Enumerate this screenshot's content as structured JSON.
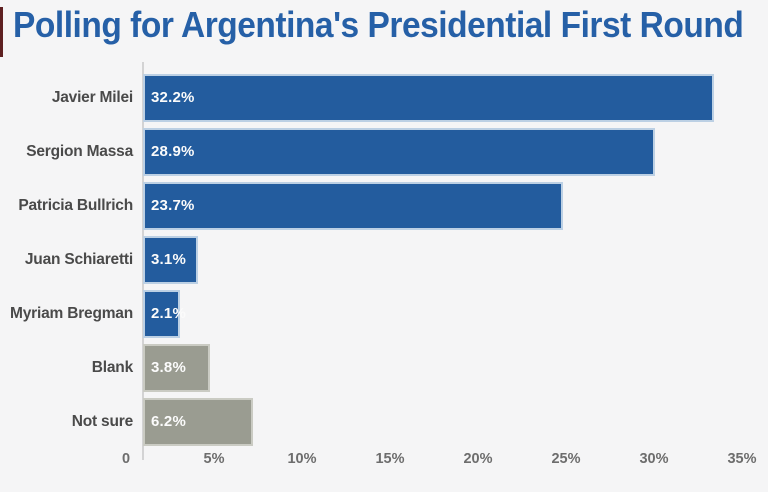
{
  "title": "Polling for Argentina's Presidential First Round",
  "colors": {
    "background": "#f5f5f6",
    "title_blue": "#2660a7",
    "category_label": "#4a4a4a",
    "tick_label": "#6d6d6d",
    "value_label": "#fbfbfb",
    "axis_line": "#d3d3d4",
    "bar_blue_fill": "#235c9e",
    "bar_blue_border": "#bcd0e4",
    "bar_gray_fill": "#9a9c91",
    "bar_gray_border": "#cacbc3",
    "left_edge_sliver": "#5e2021"
  },
  "chart_data": {
    "type": "bar",
    "orientation": "horizontal",
    "title": "Polling for Argentina's Presidential First Round",
    "xlabel": "",
    "ylabel": "",
    "xlim": [
      0,
      35
    ],
    "grid": false,
    "legend": "none",
    "x_tick_labels": [
      "0",
      "5%",
      "10%",
      "15%",
      "20%",
      "25%",
      "30%",
      "35%"
    ],
    "x_tick_values": [
      0,
      5,
      10,
      15,
      20,
      25,
      30,
      35
    ],
    "categories": [
      "Javier Milei",
      "Sergion Massa",
      "Patricia Bullrich",
      "Juan Schiaretti",
      "Myriam Bregman",
      "Blank",
      "Not sure"
    ],
    "values": [
      32.2,
      28.9,
      23.7,
      3.1,
      2.1,
      3.8,
      6.2
    ],
    "value_labels": [
      "32.2%",
      "28.9%",
      "23.7%",
      "3.1%",
      "2.1%",
      "3.8%",
      "6.2%"
    ],
    "bar_groups": [
      "candidate",
      "candidate",
      "candidate",
      "candidate",
      "candidate",
      "other",
      "other"
    ],
    "group_colors": {
      "candidate": {
        "fill": "#235c9e",
        "border": "#bcd0e4"
      },
      "other": {
        "fill": "#9a9c91",
        "border": "#cacbc3"
      }
    }
  }
}
